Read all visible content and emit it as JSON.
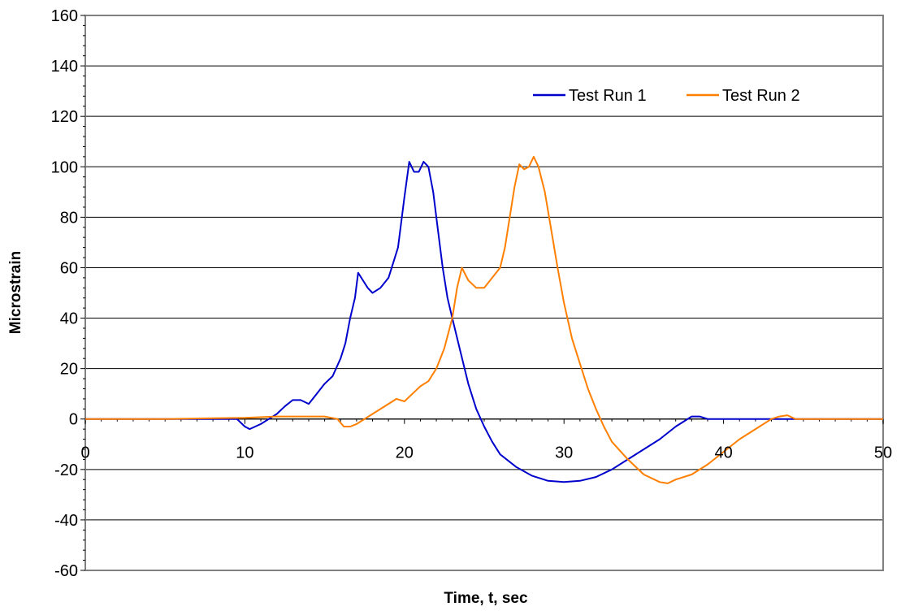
{
  "chart_data": {
    "type": "line",
    "title": "",
    "xlabel": "Time, t, sec",
    "ylabel": "Microstrain",
    "xlim": [
      0,
      50
    ],
    "ylim": [
      -60,
      160
    ],
    "x_ticks": [
      0,
      10,
      20,
      30,
      40,
      50
    ],
    "y_ticks": [
      -60,
      -40,
      -20,
      0,
      20,
      40,
      60,
      80,
      100,
      120,
      140,
      160
    ],
    "grid": "horizontal",
    "legend_position": "top-right",
    "series": [
      {
        "name": "Test Run 1",
        "color": "#0000cc",
        "x": [
          0,
          5,
          9.5,
          10,
          10.3,
          11,
          11.5,
          12,
          12.5,
          13,
          13.5,
          14,
          14.5,
          15,
          15.5,
          16,
          16.3,
          16.6,
          16.9,
          17.1,
          17.4,
          17.7,
          18,
          18.5,
          19,
          19.3,
          19.6,
          20,
          20.3,
          20.6,
          20.9,
          21.2,
          21.5,
          21.8,
          22.1,
          22.4,
          22.7,
          23,
          23.5,
          24,
          24.5,
          25,
          25.5,
          26,
          27,
          28,
          29,
          30,
          31,
          32,
          33,
          34,
          35,
          36,
          37,
          38,
          38.5,
          39,
          40,
          42,
          45,
          50
        ],
        "y": [
          0,
          0,
          0,
          -3,
          -4,
          -2,
          0,
          2,
          5,
          7.5,
          7.5,
          6,
          10,
          14,
          17,
          24,
          30,
          40,
          48,
          58,
          55,
          52,
          50,
          52,
          56,
          62,
          68,
          88,
          102,
          98,
          98,
          102,
          100,
          90,
          75,
          60,
          48,
          40,
          27,
          14,
          4,
          -3,
          -9,
          -14,
          -19,
          -22.5,
          -24.5,
          -25,
          -24.5,
          -23,
          -20,
          -16,
          -12,
          -8,
          -3,
          1,
          1,
          0,
          0,
          0,
          0,
          0
        ]
      },
      {
        "name": "Test Run 2",
        "color": "#ff7f00",
        "x": [
          0,
          5,
          10,
          12,
          15,
          15.8,
          16.2,
          16.6,
          17,
          18,
          19,
          19.5,
          20,
          20.5,
          21,
          21.5,
          22,
          22.5,
          23,
          23.3,
          23.6,
          24,
          24.5,
          25,
          25.5,
          26,
          26.3,
          26.6,
          26.9,
          27.2,
          27.5,
          27.8,
          28.1,
          28.4,
          28.8,
          29.2,
          29.6,
          30,
          30.5,
          31,
          31.5,
          32,
          32.5,
          33,
          34,
          35,
          36,
          36.5,
          37,
          38,
          39,
          40,
          41,
          42,
          43,
          43.5,
          44,
          44.5,
          45,
          50
        ],
        "y": [
          0,
          0,
          0.5,
          1,
          1,
          0,
          -3,
          -3,
          -2,
          2,
          6,
          8,
          7,
          10,
          13,
          15,
          20,
          28,
          40,
          52,
          60,
          55,
          52,
          52,
          56,
          60,
          68,
          80,
          92,
          101,
          99,
          100,
          104,
          100,
          90,
          75,
          60,
          46,
          32,
          22,
          12,
          4,
          -3,
          -9,
          -16,
          -22,
          -25,
          -25.5,
          -24,
          -22,
          -18,
          -13,
          -8,
          -4,
          0,
          1,
          1.5,
          0,
          0,
          0
        ]
      }
    ]
  }
}
